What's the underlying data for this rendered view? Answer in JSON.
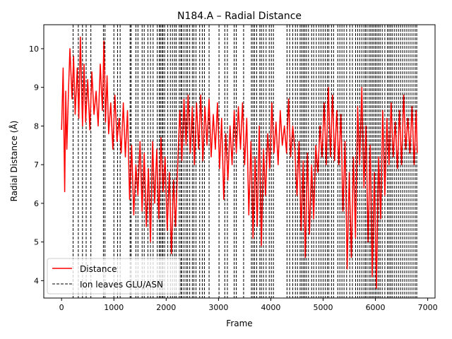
{
  "chart_data": {
    "type": "line",
    "title": "N184.A – Radial Distance",
    "xlabel": "Frame",
    "ylabel": "Radial Distance (Å)",
    "xlim": [
      -340,
      7140
    ],
    "ylim": [
      3.55,
      10.62
    ],
    "x_ticks": [
      0,
      1000,
      2000,
      3000,
      4000,
      5000,
      6000,
      7000
    ],
    "y_ticks": [
      4,
      5,
      6,
      7,
      8,
      9,
      10
    ],
    "grid": false,
    "legend_position": "lower-left",
    "legend": [
      {
        "label": "Distance",
        "style": "solid",
        "color": "#ff0000"
      },
      {
        "label": "Ion leaves GLU/ASN",
        "style": "dashed",
        "color": "#000000"
      }
    ],
    "series": [
      {
        "name": "Distance",
        "color": "#ff0000",
        "x": [
          0,
          30,
          60,
          80,
          100,
          130,
          160,
          200,
          230,
          260,
          300,
          330,
          360,
          400,
          430,
          460,
          500,
          540,
          580,
          620,
          660,
          700,
          740,
          780,
          810,
          840,
          870,
          900,
          940,
          980,
          1020,
          1060,
          1100,
          1140,
          1180,
          1220,
          1260,
          1300,
          1340,
          1380,
          1420,
          1460,
          1500,
          1540,
          1580,
          1620,
          1660,
          1700,
          1740,
          1780,
          1820,
          1860,
          1900,
          1940,
          1980,
          2020,
          2060,
          2100,
          2140,
          2180,
          2220,
          2260,
          2300,
          2340,
          2380,
          2420,
          2460,
          2500,
          2540,
          2580,
          2620,
          2660,
          2700,
          2740,
          2780,
          2820,
          2860,
          2900,
          2940,
          2980,
          3020,
          3060,
          3100,
          3140,
          3180,
          3220,
          3260,
          3300,
          3340,
          3380,
          3420,
          3460,
          3500,
          3540,
          3580,
          3620,
          3660,
          3700,
          3740,
          3780,
          3820,
          3860,
          3900,
          3940,
          3980,
          4020,
          4060,
          4100,
          4140,
          4180,
          4220,
          4260,
          4300,
          4340,
          4380,
          4420,
          4460,
          4500,
          4540,
          4580,
          4620,
          4660,
          4700,
          4740,
          4780,
          4820,
          4860,
          4900,
          4940,
          4980,
          5020,
          5060,
          5100,
          5140,
          5180,
          5220,
          5260,
          5300,
          5340,
          5380,
          5420,
          5460,
          5500,
          5540,
          5580,
          5620,
          5660,
          5700,
          5740,
          5780,
          5820,
          5860,
          5900,
          5940,
          5980,
          6020,
          6060,
          6100,
          6140,
          6180,
          6220,
          6260,
          6300,
          6340,
          6380,
          6420,
          6460,
          6500,
          6540,
          6580,
          6620,
          6660,
          6700,
          6740,
          6780,
          6800
        ],
        "y": [
          7.9,
          9.5,
          6.3,
          8.9,
          7.4,
          8.8,
          10.0,
          8.7,
          9.8,
          8.3,
          9.5,
          8.2,
          10.3,
          8.0,
          9.6,
          8.1,
          9.2,
          7.9,
          9.4,
          8.3,
          8.9,
          8.0,
          9.6,
          8.4,
          10.2,
          8.1,
          9.3,
          7.8,
          8.6,
          7.4,
          8.8,
          7.6,
          8.2,
          7.3,
          8.6,
          7.2,
          8.4,
          6.1,
          7.5,
          5.7,
          7.0,
          6.2,
          7.6,
          5.8,
          7.3,
          5.4,
          6.9,
          5.0,
          7.6,
          6.0,
          7.4,
          5.6,
          7.7,
          6.3,
          7.2,
          5.3,
          6.8,
          4.7,
          6.6,
          5.4,
          7.0,
          8.4,
          7.1,
          8.7,
          7.5,
          8.8,
          7.3,
          8.5,
          7.0,
          8.6,
          7.4,
          8.8,
          7.1,
          8.5,
          7.5,
          8.7,
          7.2,
          8.3,
          7.4,
          8.6,
          6.9,
          8.2,
          6.1,
          7.8,
          6.6,
          8.0,
          7.0,
          8.4,
          7.3,
          8.5,
          7.4,
          8.6,
          7.0,
          8.2,
          5.7,
          7.6,
          5.1,
          7.2,
          5.4,
          8.0,
          4.9,
          7.4,
          6.2,
          7.8,
          6.9,
          8.6,
          7.3,
          8.1,
          7.0,
          8.4,
          7.5,
          8.0,
          7.3,
          8.7,
          7.2,
          8.0,
          7.4,
          6.2,
          7.6,
          5.3,
          7.1,
          4.6,
          7.3,
          5.2,
          7.0,
          5.6,
          7.5,
          6.8,
          8.0,
          7.2,
          8.6,
          7.0,
          9.0,
          7.2,
          8.8,
          7.1,
          8.4,
          7.0,
          8.3,
          5.8,
          7.6,
          4.3,
          6.8,
          4.6,
          7.2,
          5.1,
          8.5,
          7.0,
          9.0,
          6.4,
          8.0,
          5.0,
          7.5,
          4.1,
          6.8,
          3.8,
          7.2,
          5.6,
          8.4,
          6.2,
          8.2,
          7.0,
          8.6,
          7.2,
          8.1,
          6.9,
          8.4,
          7.0,
          8.8,
          7.4,
          8.2,
          7.3,
          8.5,
          7.0,
          8.4,
          7.3
        ]
      },
      {
        "name": "Ion leaves GLU/ASN",
        "type": "vertical-lines",
        "color": "#000000",
        "x": [
          220,
          320,
          400,
          470,
          560,
          800,
          830,
          1000,
          1070,
          1120,
          1310,
          1330,
          1420,
          1460,
          1540,
          1580,
          1650,
          1700,
          1750,
          1830,
          1870,
          1890,
          1920,
          1940,
          1970,
          2030,
          2080,
          2120,
          2160,
          2190,
          2250,
          2280,
          2300,
          2340,
          2380,
          2410,
          2450,
          2500,
          2530,
          2570,
          2640,
          2690,
          2730,
          2820,
          3010,
          3120,
          3170,
          3300,
          3340,
          3480,
          3630,
          3660,
          3690,
          3730,
          3790,
          3820,
          3860,
          3910,
          3970,
          4010,
          4050,
          4310,
          4360,
          4420,
          4470,
          4510,
          4560,
          4590,
          4620,
          4650,
          4680,
          4720,
          4780,
          4820,
          4870,
          4920,
          4960,
          5000,
          5040,
          5080,
          5110,
          5160,
          5200,
          5280,
          5320,
          5360,
          5400,
          5450,
          5510,
          5560,
          5620,
          5660,
          5700,
          5740,
          5780,
          5810,
          5840,
          5880,
          5910,
          5940,
          5970,
          6000,
          6030,
          6060,
          6090,
          6130,
          6180,
          6230,
          6260,
          6290,
          6320,
          6360,
          6400,
          6440,
          6480,
          6520,
          6560,
          6600,
          6640,
          6680,
          6720,
          6760,
          6790
        ]
      }
    ]
  }
}
